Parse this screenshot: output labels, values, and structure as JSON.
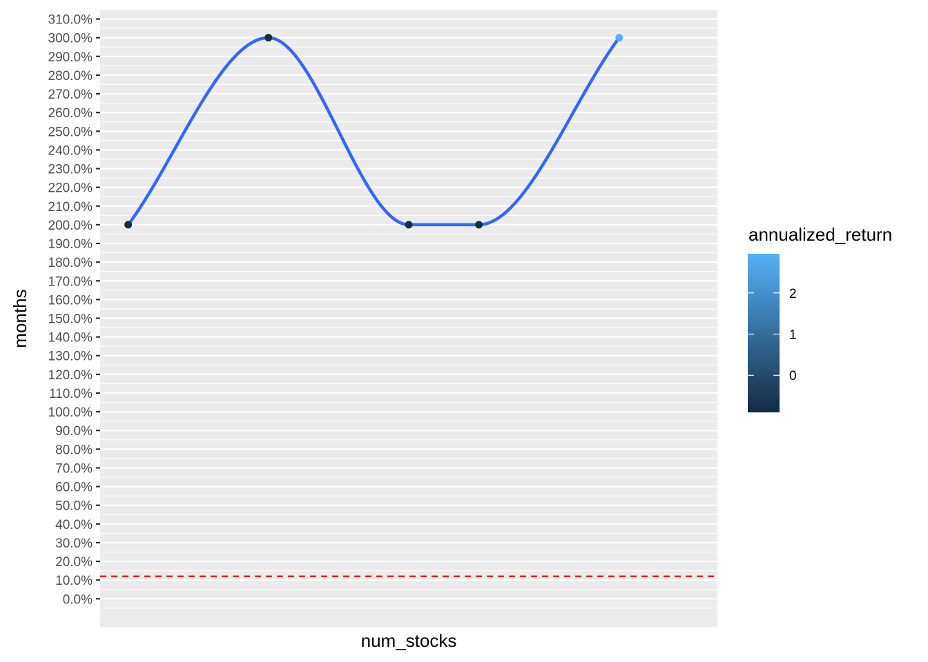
{
  "chart_data": {
    "type": "line",
    "xlabel": "num_stocks",
    "ylabel": "months",
    "ylim": [
      -0.15,
      3.15
    ],
    "yticks": [
      0,
      0.1,
      0.2,
      0.3,
      0.4,
      0.5,
      0.6,
      0.7,
      0.8,
      0.9,
      1.0,
      1.1,
      1.2,
      1.3,
      1.4,
      1.5,
      1.6,
      1.7,
      1.8,
      1.9,
      2.0,
      2.1,
      2.2,
      2.3,
      2.4,
      2.5,
      2.6,
      2.7,
      2.8,
      2.9,
      3.0,
      3.1
    ],
    "ytick_labels": [
      "0.0%",
      "10.0%",
      "20.0%",
      "30.0%",
      "40.0%",
      "50.0%",
      "60.0%",
      "70.0%",
      "80.0%",
      "90.0%",
      "100.0%",
      "110.0%",
      "120.0%",
      "130.0%",
      "140.0%",
      "150.0%",
      "160.0%",
      "170.0%",
      "180.0%",
      "190.0%",
      "200.0%",
      "210.0%",
      "220.0%",
      "230.0%",
      "240.0%",
      "250.0%",
      "260.0%",
      "270.0%",
      "280.0%",
      "290.0%",
      "300.0%",
      "310.0%"
    ],
    "x_tick_labels_visible": false,
    "xlim": [
      0.6,
      9.4
    ],
    "points": [
      {
        "x": 1,
        "y": 2.0,
        "annualized_return": -0.9
      },
      {
        "x": 3,
        "y": 3.0,
        "annualized_return": -0.85
      },
      {
        "x": 5,
        "y": 2.0,
        "annualized_return": -0.8
      },
      {
        "x": 6,
        "y": 2.0,
        "annualized_return": -0.8
      },
      {
        "x": 8,
        "y": 3.0,
        "annualized_return": 2.95
      }
    ],
    "smooth_line": {
      "color": "#3366ff",
      "method": "spline"
    },
    "hline": {
      "y": 0.12,
      "color": "#ff0000",
      "linetype": "dashed"
    },
    "grid": true,
    "panel_background": "#ebebeb",
    "legend": {
      "title": "annualized_return",
      "position": "right",
      "type": "colorbar",
      "range": [
        -0.9,
        2.95
      ],
      "breaks": [
        0,
        1,
        2
      ],
      "break_labels": [
        "0",
        "1",
        "2"
      ],
      "low_color": "#132b43",
      "high_color": "#56b1f7"
    }
  }
}
